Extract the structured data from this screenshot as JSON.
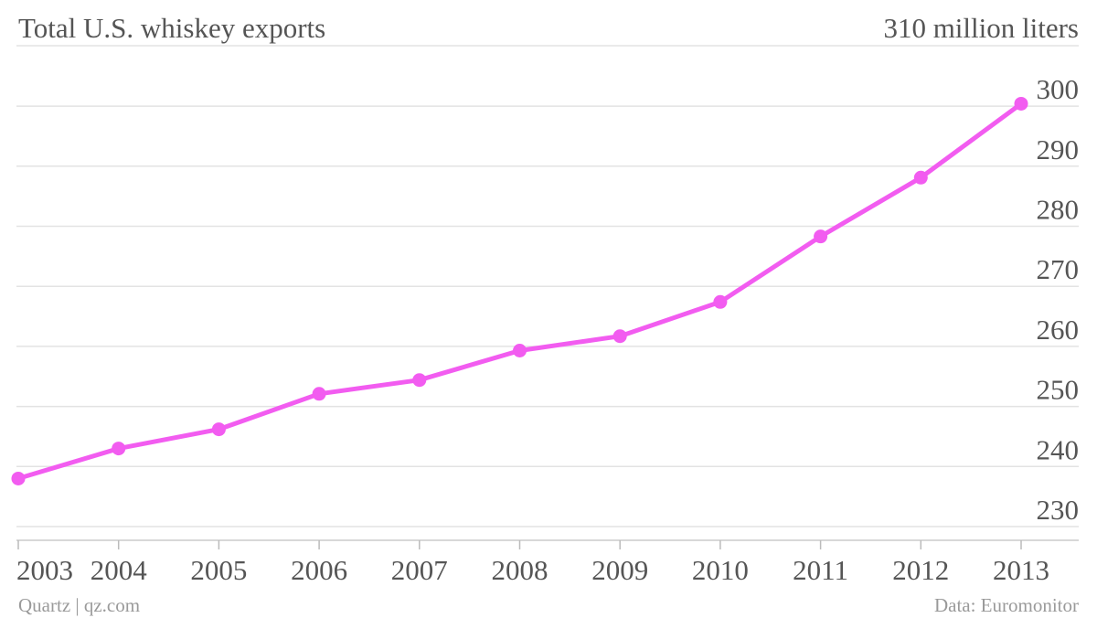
{
  "header": {
    "title": "Total U.S. whiskey exports",
    "unit_label": "310 million liters"
  },
  "footer": {
    "credit": "Quartz | qz.com",
    "source": "Data: Euromonitor"
  },
  "colors": {
    "series": "#f25cf0",
    "text": "#555555",
    "footer_text": "#9a9a9a",
    "gridline": "#e3e3e3"
  },
  "chart_data": {
    "type": "line",
    "title": "Total U.S. whiskey exports",
    "xlabel": "",
    "ylabel": "",
    "categories": [
      "2003",
      "2004",
      "2005",
      "2006",
      "2007",
      "2008",
      "2009",
      "2010",
      "2011",
      "2012",
      "2013"
    ],
    "series": [
      {
        "values": [
          238.0,
          243.0,
          246.2,
          252.1,
          254.4,
          259.3,
          261.7,
          267.4,
          278.3,
          288.1,
          300.4
        ]
      }
    ],
    "yticks": [
      230,
      240,
      250,
      260,
      270,
      280,
      290,
      300
    ],
    "ylim": [
      225,
      310
    ],
    "grid": true,
    "markers": true,
    "yaxis_position": "right"
  }
}
